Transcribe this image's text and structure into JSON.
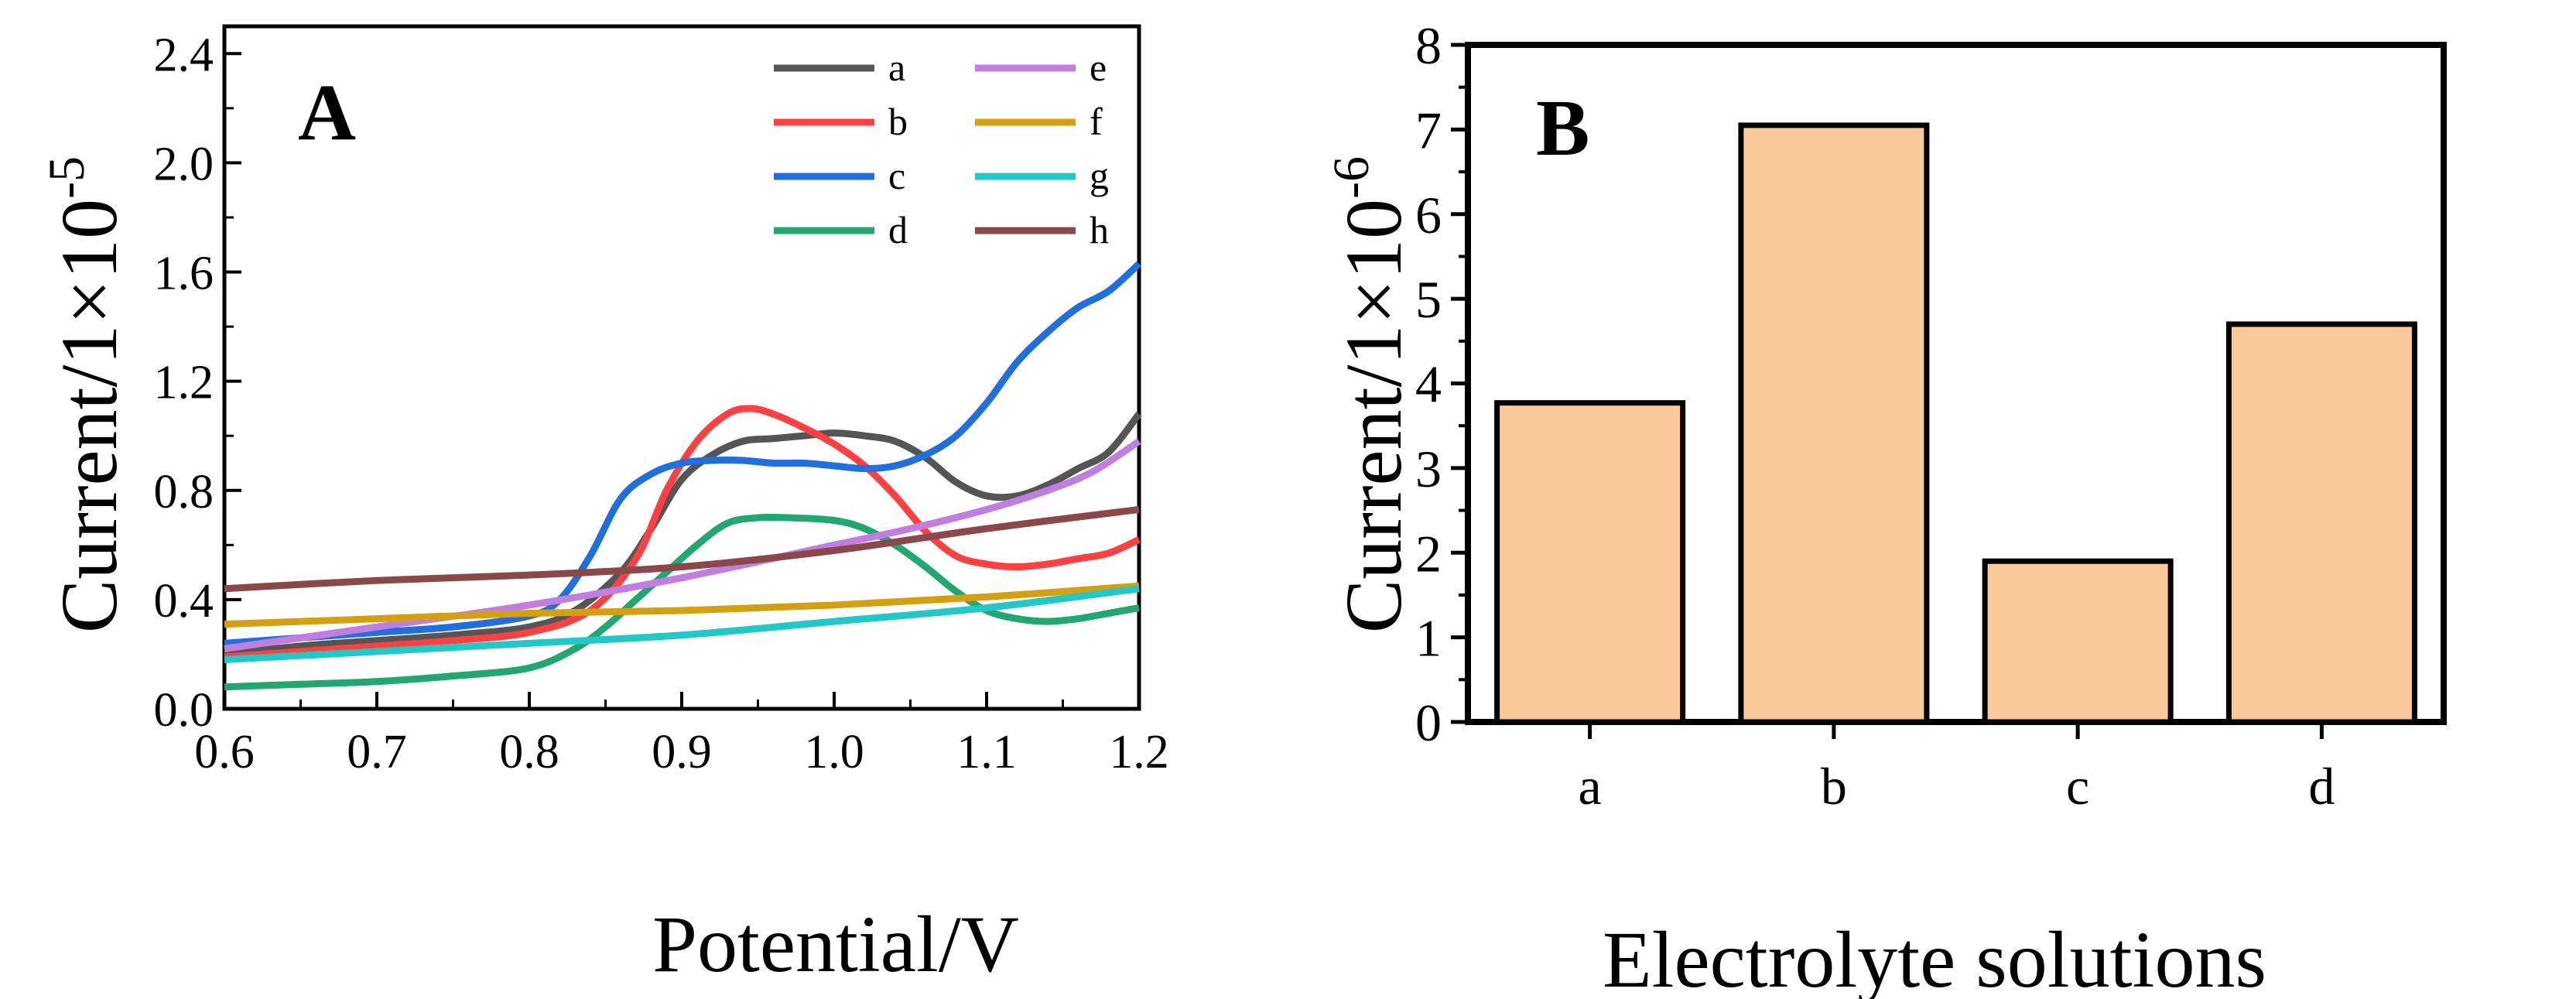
{
  "chart_data": [
    {
      "panel_label": "A",
      "type": "line",
      "xlabel": "Potential/V",
      "ylabel": "Current/1×10",
      "ylabel_exponent": "-5",
      "xlim": [
        0.6,
        1.2
      ],
      "ylim": [
        0.0,
        2.5
      ],
      "xticks": [
        "0.6",
        "0.7",
        "0.8",
        "0.9",
        "1.0",
        "1.1",
        "1.2"
      ],
      "yticks": [
        "0.0",
        "0.4",
        "0.8",
        "1.2",
        "1.6",
        "2.0",
        "2.4"
      ],
      "legend": "top-right",
      "grid": false,
      "series": [
        {
          "name": "a",
          "color": "#555555",
          "x": [
            0.6,
            0.65,
            0.7,
            0.75,
            0.8,
            0.83,
            0.86,
            0.88,
            0.9,
            0.92,
            0.94,
            0.96,
            0.98,
            1.0,
            1.02,
            1.04,
            1.06,
            1.08,
            1.1,
            1.12,
            1.14,
            1.16,
            1.18,
            1.2
          ],
          "y": [
            0.2,
            0.23,
            0.25,
            0.27,
            0.3,
            0.36,
            0.5,
            0.66,
            0.84,
            0.93,
            0.98,
            0.99,
            1.0,
            1.01,
            1.0,
            0.98,
            0.92,
            0.83,
            0.78,
            0.78,
            0.82,
            0.88,
            0.94,
            1.08
          ]
        },
        {
          "name": "b",
          "color": "#ff4040",
          "x": [
            0.6,
            0.65,
            0.7,
            0.75,
            0.8,
            0.84,
            0.87,
            0.89,
            0.91,
            0.93,
            0.945,
            0.96,
            0.98,
            1.0,
            1.02,
            1.04,
            1.06,
            1.08,
            1.1,
            1.12,
            1.14,
            1.16,
            1.18,
            1.2
          ],
          "y": [
            0.19,
            0.21,
            0.23,
            0.25,
            0.28,
            0.36,
            0.55,
            0.8,
            0.98,
            1.08,
            1.1,
            1.08,
            1.03,
            0.97,
            0.89,
            0.78,
            0.65,
            0.56,
            0.53,
            0.52,
            0.53,
            0.55,
            0.57,
            0.62
          ]
        },
        {
          "name": "c",
          "color": "#1f6fe0",
          "x": [
            0.6,
            0.65,
            0.7,
            0.75,
            0.8,
            0.82,
            0.84,
            0.86,
            0.88,
            0.9,
            0.92,
            0.94,
            0.96,
            0.98,
            1.0,
            1.02,
            1.04,
            1.06,
            1.08,
            1.1,
            1.12,
            1.14,
            1.16,
            1.18,
            1.2
          ],
          "y": [
            0.24,
            0.26,
            0.28,
            0.3,
            0.34,
            0.4,
            0.56,
            0.77,
            0.86,
            0.9,
            0.91,
            0.91,
            0.9,
            0.9,
            0.89,
            0.88,
            0.89,
            0.93,
            1.0,
            1.12,
            1.27,
            1.38,
            1.47,
            1.53,
            1.63
          ]
        },
        {
          "name": "d",
          "color": "#20a870",
          "x": [
            0.6,
            0.65,
            0.7,
            0.75,
            0.8,
            0.83,
            0.85,
            0.87,
            0.89,
            0.91,
            0.93,
            0.95,
            0.97,
            1.0,
            1.02,
            1.04,
            1.06,
            1.08,
            1.1,
            1.12,
            1.14,
            1.16,
            1.18,
            1.2
          ],
          "y": [
            0.08,
            0.09,
            0.1,
            0.12,
            0.15,
            0.22,
            0.3,
            0.4,
            0.5,
            0.6,
            0.68,
            0.7,
            0.7,
            0.69,
            0.66,
            0.6,
            0.52,
            0.43,
            0.36,
            0.33,
            0.32,
            0.33,
            0.35,
            0.37
          ]
        },
        {
          "name": "e",
          "color": "#c07ee0",
          "x": [
            0.6,
            0.7,
            0.8,
            0.9,
            1.0,
            1.05,
            1.1,
            1.14,
            1.17,
            1.2
          ],
          "y": [
            0.22,
            0.3,
            0.38,
            0.48,
            0.6,
            0.66,
            0.73,
            0.8,
            0.87,
            0.98
          ]
        },
        {
          "name": "f",
          "color": "#d4a010",
          "x": [
            0.6,
            0.7,
            0.8,
            0.9,
            1.0,
            1.1,
            1.2
          ],
          "y": [
            0.31,
            0.33,
            0.35,
            0.36,
            0.38,
            0.41,
            0.45
          ]
        },
        {
          "name": "g",
          "color": "#20c8c8",
          "x": [
            0.6,
            0.7,
            0.8,
            0.9,
            1.0,
            1.1,
            1.2
          ],
          "y": [
            0.18,
            0.21,
            0.24,
            0.27,
            0.32,
            0.37,
            0.44
          ]
        },
        {
          "name": "h",
          "color": "#8b4848",
          "x": [
            0.6,
            0.7,
            0.8,
            0.9,
            1.0,
            1.1,
            1.2
          ],
          "y": [
            0.44,
            0.47,
            0.49,
            0.52,
            0.58,
            0.66,
            0.73
          ]
        }
      ]
    },
    {
      "panel_label": "B",
      "type": "bar",
      "xlabel": "Electrolyte solutions",
      "ylabel": "Current/1×10",
      "ylabel_exponent": "-6",
      "categories": [
        "a",
        "b",
        "c",
        "d"
      ],
      "values": [
        3.77,
        7.05,
        1.9,
        4.7
      ],
      "ylim": [
        0,
        8
      ],
      "yticks": [
        "0",
        "1",
        "2",
        "3",
        "4",
        "5",
        "6",
        "7",
        "8"
      ],
      "bar_color": "#fbc99a",
      "grid": false
    }
  ]
}
